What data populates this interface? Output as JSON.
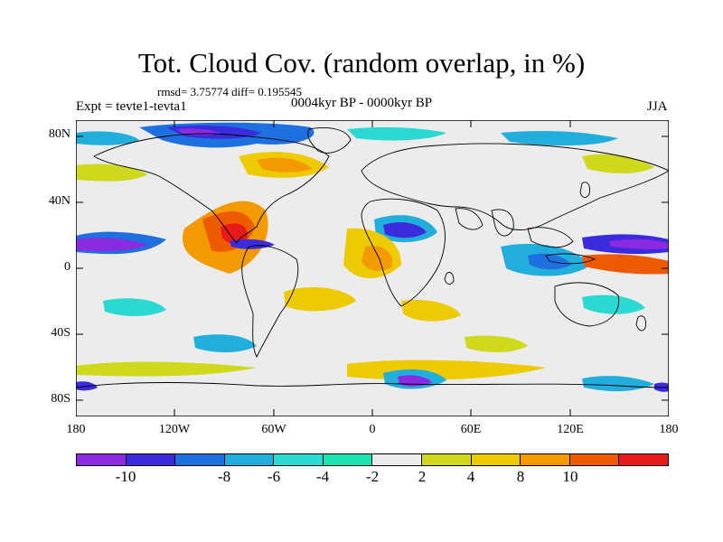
{
  "title": "Tot. Cloud Cov. (random overlap, in %)",
  "stats": "rmsd= 3.75774 diff= 0.195545",
  "expt": "Expt = tevte1-tevta1",
  "period": "0004kyr BP - 0000kyr BP",
  "season": "JJA",
  "lat_labels": [
    "80N",
    "40N",
    "0",
    "40S",
    "80S"
  ],
  "lon_labels": [
    "180",
    "120W",
    "60W",
    "0",
    "60E",
    "120E",
    "180"
  ],
  "colorbar": {
    "colors": [
      "#8a2be2",
      "#3a2bdc",
      "#1e6fe0",
      "#22aedc",
      "#2ad9d2",
      "#1de3b0",
      "#ececec",
      "#cfd91b",
      "#eecb00",
      "#f29a00",
      "#ee5a00",
      "#e81a1a"
    ],
    "labels": [
      "-10",
      "-8",
      "-6",
      "-4",
      "-2",
      "2",
      "4",
      "8",
      "10"
    ]
  }
}
